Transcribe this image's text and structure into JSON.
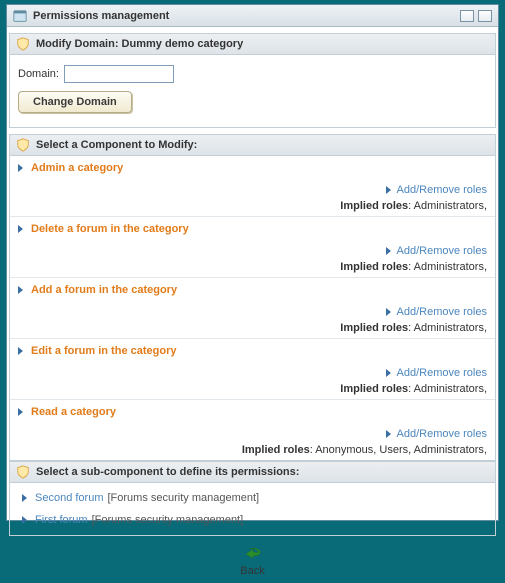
{
  "window": {
    "title": "Permissions management"
  },
  "domainSection": {
    "header": "Modify Domain: Dummy demo category",
    "label": "Domain:",
    "value": "",
    "button": "Change Domain"
  },
  "componentsSection": {
    "header": "Select a Component to Modify:",
    "addRemoveLabel": "Add/Remove roles",
    "impliedLabel": "Implied roles",
    "items": [
      {
        "name": "Admin a category",
        "implied": "Administrators,"
      },
      {
        "name": "Delete a forum in the category",
        "implied": "Administrators,"
      },
      {
        "name": "Add a forum in the category",
        "implied": "Administrators,"
      },
      {
        "name": "Edit a forum in the category",
        "implied": "Administrators,"
      },
      {
        "name": "Read a category",
        "implied": "Anonymous, Users, Administrators,"
      }
    ]
  },
  "subSection": {
    "header": "Select a sub-component to define its permissions:",
    "items": [
      {
        "name": "Second forum",
        "desc": "[Forums security management]"
      },
      {
        "name": "First forum",
        "desc": "[Forums security management]"
      }
    ]
  },
  "back": {
    "label": "Back"
  },
  "colors": {
    "accentOrange": "#e27b19",
    "link": "#4b86bd",
    "triangle": "#3a6fa4",
    "shieldOuter": "#d9a13a",
    "shieldInner": "#ffe9a8",
    "backArrow": "#2a8f2a"
  }
}
